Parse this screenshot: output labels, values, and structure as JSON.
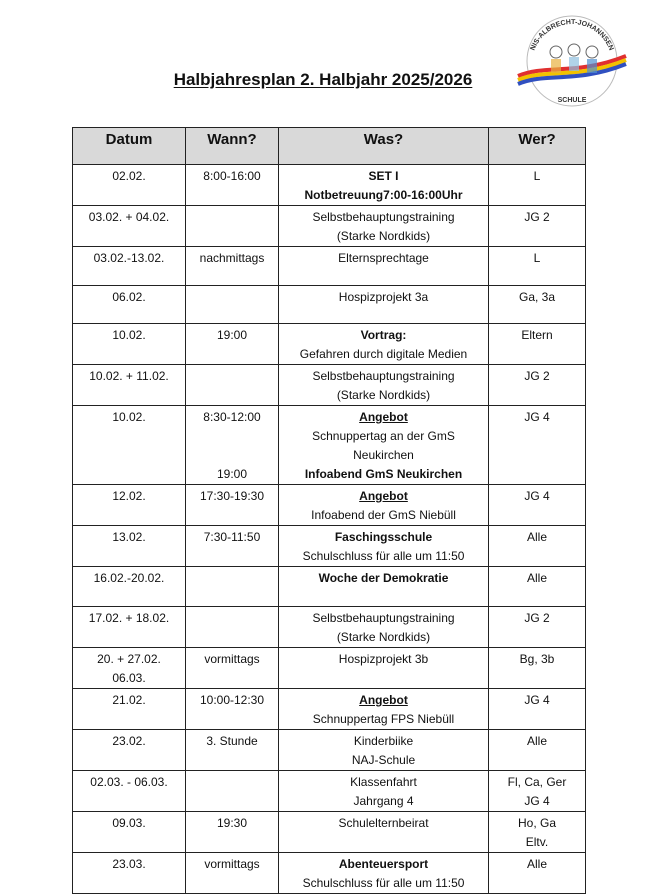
{
  "title": "Halbjahresplan 2. Halbjahr 2025/2026",
  "logo": {
    "top_text": "NIS-ALBRECHT-JOHANNSEN",
    "bottom_text": "SCHULE",
    "colors": [
      "#e03030",
      "#f2c200",
      "#3050c0"
    ]
  },
  "table": {
    "headers": [
      "Datum",
      "Wann?",
      "Was?",
      "Wer?"
    ],
    "header_bg": "#d9d9d9",
    "rows": [
      {
        "datum": [
          "02.02."
        ],
        "wann": [
          "8:00-16:00"
        ],
        "was": [
          {
            "text": "SET I",
            "style": "bold"
          },
          {
            "text": "Notbetreuung7:00-16:00Uhr",
            "style": "bold"
          }
        ],
        "wer": [
          "L"
        ]
      },
      {
        "datum": [
          "03.02. + 04.02."
        ],
        "wann": [
          ""
        ],
        "was": [
          {
            "text": "Selbstbehauptungstraining",
            "style": "normal"
          },
          {
            "text": "(Starke Nordkids)",
            "style": "normal"
          }
        ],
        "wer": [
          "JG 2"
        ]
      },
      {
        "datum": [
          "03.02.-13.02."
        ],
        "wann": [
          "nachmittags"
        ],
        "was": [
          {
            "text": "Elternsprechtage",
            "style": "normal"
          }
        ],
        "wer": [
          "L"
        ]
      },
      {
        "datum": [
          "06.02."
        ],
        "wann": [
          ""
        ],
        "was": [
          {
            "text": "Hospizprojekt 3a",
            "style": "normal"
          }
        ],
        "wer": [
          "Ga, 3a"
        ]
      },
      {
        "datum": [
          "10.02."
        ],
        "wann": [
          "19:00"
        ],
        "was": [
          {
            "text": "Vortrag:",
            "style": "bold"
          },
          {
            "text": "Gefahren durch digitale Medien",
            "style": "normal"
          }
        ],
        "wer": [
          "Eltern"
        ]
      },
      {
        "datum": [
          "10.02. + 11.02."
        ],
        "wann": [
          ""
        ],
        "was": [
          {
            "text": "Selbstbehauptungstraining",
            "style": "normal"
          },
          {
            "text": "(Starke Nordkids)",
            "style": "normal"
          }
        ],
        "wer": [
          "JG 2"
        ]
      },
      {
        "datum": [
          "10.02."
        ],
        "wann": [
          "8:30-12:00",
          "",
          "",
          "19:00"
        ],
        "was": [
          {
            "text": "Angebot",
            "style": "bold-underline"
          },
          {
            "text": "Schnuppertag an der GmS",
            "style": "normal"
          },
          {
            "text": "Neukirchen",
            "style": "normal"
          },
          {
            "text": "Infoabend GmS Neukirchen",
            "style": "bold"
          }
        ],
        "wer": [
          "JG 4"
        ]
      },
      {
        "datum": [
          "12.02."
        ],
        "wann": [
          "17:30-19:30"
        ],
        "was": [
          {
            "text": "Angebot",
            "style": "bold-underline"
          },
          {
            "text": "Infoabend der GmS Niebüll",
            "style": "normal"
          }
        ],
        "wer": [
          "JG 4"
        ]
      },
      {
        "datum": [
          "13.02."
        ],
        "wann": [
          "7:30-11:50"
        ],
        "was": [
          {
            "text": "Faschingsschule",
            "style": "bold"
          },
          {
            "text": "Schulschluss für alle um 11:50",
            "style": "normal"
          }
        ],
        "wer": [
          "Alle"
        ]
      },
      {
        "datum": [
          "16.02.-20.02."
        ],
        "wann": [
          ""
        ],
        "was": [
          {
            "text": "Woche der Demokratie",
            "style": "bold"
          }
        ],
        "wer": [
          "Alle"
        ]
      },
      {
        "datum": [
          "17.02. + 18.02."
        ],
        "wann": [
          ""
        ],
        "was": [
          {
            "text": "Selbstbehauptungstraining",
            "style": "normal"
          },
          {
            "text": "(Starke Nordkids)",
            "style": "normal"
          }
        ],
        "wer": [
          "JG 2"
        ]
      },
      {
        "datum": [
          "20. + 27.02.",
          "06.03."
        ],
        "wann": [
          "vormittags"
        ],
        "was": [
          {
            "text": "Hospizprojekt 3b",
            "style": "normal"
          }
        ],
        "wer": [
          "Bg, 3b"
        ]
      },
      {
        "datum": [
          "21.02."
        ],
        "wann": [
          "10:00-12:30"
        ],
        "was": [
          {
            "text": "Angebot",
            "style": "bold-underline"
          },
          {
            "text": "Schnuppertag FPS Niebüll",
            "style": "normal"
          }
        ],
        "wer": [
          "JG 4"
        ]
      },
      {
        "datum": [
          "23.02."
        ],
        "wann": [
          "3. Stunde"
        ],
        "was": [
          {
            "text": "Kinderbiike",
            "style": "normal"
          },
          {
            "text": "NAJ-Schule",
            "style": "normal"
          }
        ],
        "wer": [
          "Alle"
        ]
      },
      {
        "datum": [
          "02.03. - 06.03."
        ],
        "wann": [
          ""
        ],
        "was": [
          {
            "text": "Klassenfahrt",
            "style": "normal"
          },
          {
            "text": "Jahrgang 4",
            "style": "normal"
          }
        ],
        "wer": [
          "Fl, Ca, Ger",
          "JG 4"
        ]
      },
      {
        "datum": [
          "09.03."
        ],
        "wann": [
          "19:30"
        ],
        "was": [
          {
            "text": "Schulelternbeirat",
            "style": "normal"
          }
        ],
        "wer": [
          "Ho, Ga",
          "Eltv."
        ]
      },
      {
        "datum": [
          "23.03."
        ],
        "wann": [
          "vormittags"
        ],
        "was": [
          {
            "text": "Abenteuersport",
            "style": "bold"
          },
          {
            "text": "Schulschluss für alle um 11:50",
            "style": "normal"
          }
        ],
        "wer": [
          "Alle"
        ]
      }
    ]
  }
}
